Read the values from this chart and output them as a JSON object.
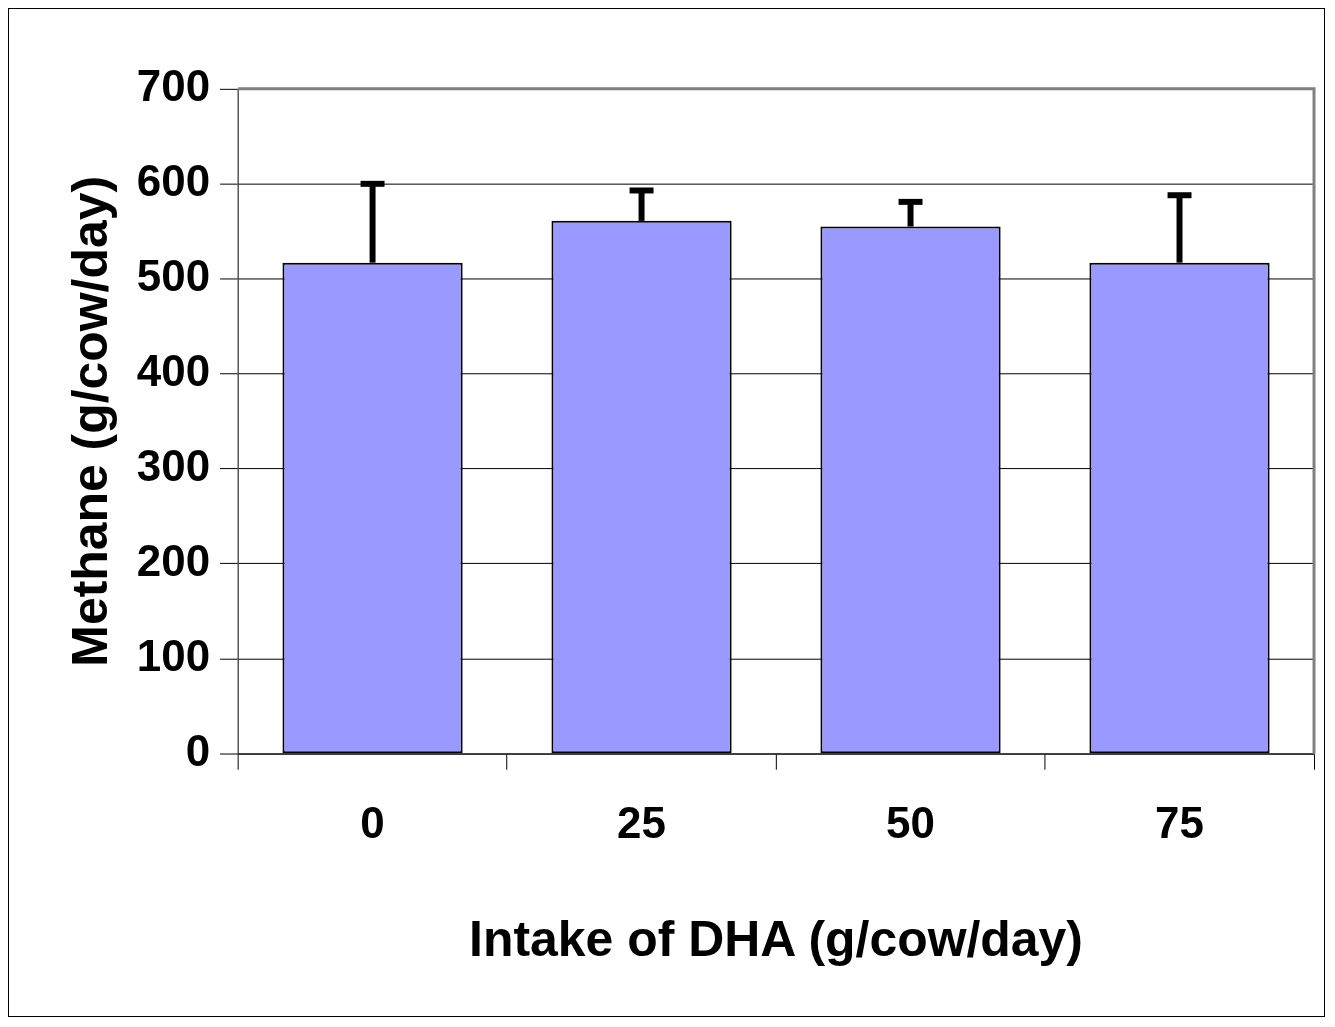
{
  "chart_data": {
    "type": "bar",
    "xlabel": "Intake of DHA (g/cow/day)",
    "ylabel": "Methane (g/cow/day)",
    "categories": [
      "0",
      "25",
      "50",
      "75"
    ],
    "series": [
      {
        "color": "#9999ff",
        "values": [
          517,
          561,
          555,
          517
        ],
        "errors": [
          [
            517,
            600
          ],
          [
            561,
            593
          ],
          [
            555,
            581
          ],
          [
            517,
            588
          ]
        ]
      }
    ],
    "ylim": [
      0,
      700
    ],
    "yticks": [
      0,
      100,
      200,
      300,
      400,
      500,
      600,
      700
    ],
    "grid": "y",
    "legend": false
  }
}
